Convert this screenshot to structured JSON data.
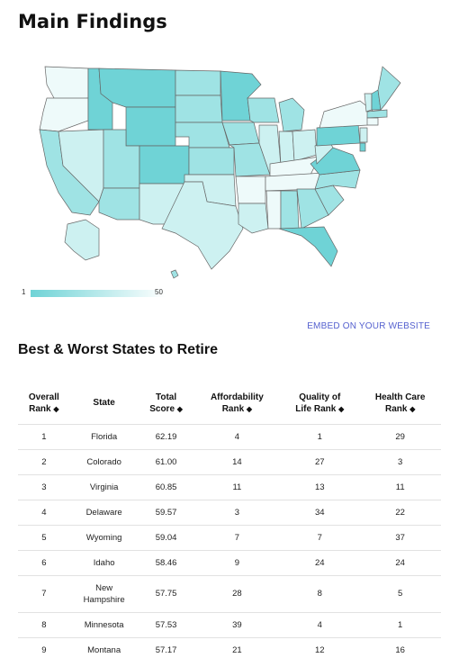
{
  "header": {
    "title": "Main Findings"
  },
  "map": {
    "colors": {
      "dark": "#6fd3d6",
      "mid": "#9fe3e4",
      "light": "#cdf1f1",
      "pale": "#eefafa",
      "border": "#555555"
    },
    "legend": {
      "min_label": "1",
      "max_label": "50"
    }
  },
  "embed_link": "EMBED ON YOUR WEBSITE",
  "section": {
    "subtitle": "Best & Worst States to Retire"
  },
  "table": {
    "headers": [
      {
        "line1": "Overall",
        "line2": "Rank"
      },
      {
        "line1": "State",
        "line2": ""
      },
      {
        "line1": "Total",
        "line2": "Score"
      },
      {
        "line1": "Affordability",
        "line2": "Rank"
      },
      {
        "line1": "Quality of",
        "line2": "Life Rank"
      },
      {
        "line1": "Health Care",
        "line2": "Rank"
      }
    ],
    "rows": [
      {
        "rank": "1",
        "state": "Florida",
        "score": "62.19",
        "afford": "4",
        "quality": "1",
        "health": "29"
      },
      {
        "rank": "2",
        "state": "Colorado",
        "score": "61.00",
        "afford": "14",
        "quality": "27",
        "health": "3"
      },
      {
        "rank": "3",
        "state": "Virginia",
        "score": "60.85",
        "afford": "11",
        "quality": "13",
        "health": "11"
      },
      {
        "rank": "4",
        "state": "Delaware",
        "score": "59.57",
        "afford": "3",
        "quality": "34",
        "health": "22"
      },
      {
        "rank": "5",
        "state": "Wyoming",
        "score": "59.04",
        "afford": "7",
        "quality": "7",
        "health": "37"
      },
      {
        "rank": "6",
        "state": "Idaho",
        "score": "58.46",
        "afford": "9",
        "quality": "24",
        "health": "24"
      },
      {
        "rank": "7",
        "state": "New",
        "state2": "Hampshire",
        "score": "57.75",
        "afford": "28",
        "quality": "8",
        "health": "5"
      },
      {
        "rank": "8",
        "state": "Minnesota",
        "score": "57.53",
        "afford": "39",
        "quality": "4",
        "health": "1"
      },
      {
        "rank": "9",
        "state": "Montana",
        "score": "57.17",
        "afford": "21",
        "quality": "12",
        "health": "16"
      }
    ]
  }
}
